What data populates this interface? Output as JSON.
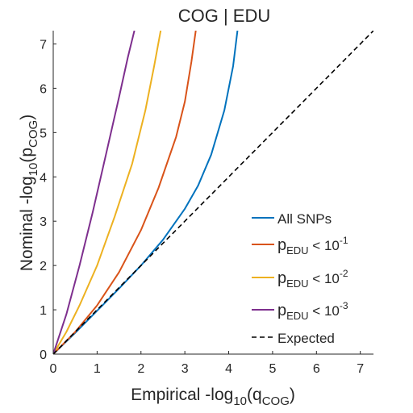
{
  "chart_data": {
    "type": "line",
    "title": "COG | EDU",
    "xlabel": {
      "pre": "Empirical -log",
      "sub": "10",
      "mid": "(q",
      "sub2": "COG",
      "post": ")"
    },
    "ylabel": {
      "pre": "Nominal -log",
      "sub": "10",
      "mid": "(p",
      "sub2": "COG",
      "post": ")"
    },
    "xlim": [
      0,
      7.3
    ],
    "ylim": [
      0,
      7.3
    ],
    "xticks": [
      "0",
      "1",
      "2",
      "3",
      "4",
      "5",
      "6",
      "7"
    ],
    "yticks": [
      "0",
      "1",
      "2",
      "3",
      "4",
      "5",
      "6",
      "7"
    ],
    "grid": false,
    "legend_position": "bottom-right",
    "series": [
      {
        "name": "All SNPs",
        "color": "#0072BD",
        "x": [
          0,
          0.5,
          1.0,
          1.5,
          2.0,
          2.5,
          3.0,
          3.3,
          3.6,
          3.9,
          4.1,
          4.2
        ],
        "y": [
          0,
          0.48,
          0.98,
          1.48,
          2.0,
          2.58,
          3.28,
          3.8,
          4.5,
          5.5,
          6.5,
          7.3
        ]
      },
      {
        "name": {
          "pre": "p",
          "sub": "EDU",
          "post": " < 10",
          "sup": "-1"
        },
        "color": "#D95319",
        "x": [
          0,
          0.5,
          1.0,
          1.5,
          2.0,
          2.4,
          2.8,
          3.0,
          3.15,
          3.25
        ],
        "y": [
          0,
          0.5,
          1.1,
          1.85,
          2.8,
          3.75,
          4.9,
          5.7,
          6.6,
          7.3
        ]
      },
      {
        "name": {
          "pre": "p",
          "sub": "EDU",
          "post": " < 10",
          "sup": "-2"
        },
        "color": "#EDB120",
        "x": [
          0,
          0.3,
          0.6,
          1.0,
          1.4,
          1.8,
          2.1,
          2.3,
          2.45
        ],
        "y": [
          0,
          0.5,
          1.1,
          2.0,
          3.1,
          4.3,
          5.5,
          6.5,
          7.3
        ]
      },
      {
        "name": {
          "pre": "p",
          "sub": "EDU",
          "post": " < 10",
          "sup": "-3"
        },
        "color": "#7E2F8E",
        "x": [
          0,
          0.3,
          0.6,
          0.9,
          1.2,
          1.5,
          1.7,
          1.85
        ],
        "y": [
          0,
          0.9,
          2.0,
          3.2,
          4.5,
          5.8,
          6.7,
          7.3
        ]
      },
      {
        "name": "Expected",
        "color": "#000000",
        "dashed": true,
        "x": [
          0,
          7.3
        ],
        "y": [
          0,
          7.3
        ]
      }
    ]
  }
}
